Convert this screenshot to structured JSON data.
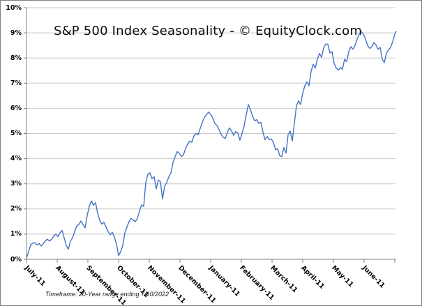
{
  "window": {
    "background": "#ffffff",
    "border_color": "#808080"
  },
  "chart_data": {
    "type": "line",
    "title": "S&P 500 Index Seasonality - © EquityClock.com",
    "note": "Timeframe: 20-Year range ending 7/10/2022",
    "grid": "horizontal",
    "legend": "none",
    "line_color": "#4472C4",
    "axis_color": "#808080",
    "grid_color": "#C8C8C8",
    "x_axis": {
      "tick_labels": [
        "July-11",
        "August-11",
        "September-11",
        "October-11",
        "November-11",
        "December-11",
        "January-11",
        "February-11",
        "March-11",
        "April-11",
        "May-11",
        "June-11"
      ]
    },
    "y_axis": {
      "tick_labels": [
        "0%",
        "1%",
        "2%",
        "3%",
        "4%",
        "5%",
        "6%",
        "7%",
        "8%",
        "9%",
        "10%"
      ],
      "min": 0,
      "max": 10,
      "unit": "%"
    },
    "series": [
      {
        "values": [
          0.05,
          0.3,
          0.58,
          0.64,
          0.66,
          0.57,
          0.63,
          0.53,
          0.62,
          0.73,
          0.8,
          0.72,
          0.8,
          0.92,
          1.0,
          0.9,
          1.05,
          1.15,
          0.85,
          0.55,
          0.4,
          0.72,
          0.85,
          1.1,
          1.32,
          1.38,
          1.52,
          1.38,
          1.25,
          1.74,
          2.11,
          2.32,
          2.15,
          2.25,
          1.83,
          1.55,
          1.4,
          1.47,
          1.28,
          1.1,
          0.97,
          1.08,
          0.88,
          0.6,
          0.15,
          0.3,
          0.55,
          1.05,
          1.28,
          1.5,
          1.63,
          1.55,
          1.5,
          1.62,
          1.92,
          2.16,
          2.1,
          3.05,
          3.38,
          3.44,
          3.2,
          3.28,
          2.8,
          3.15,
          3.08,
          2.4,
          2.9,
          3.05,
          3.28,
          3.42,
          3.85,
          4.08,
          4.28,
          4.22,
          4.08,
          4.15,
          4.4,
          4.58,
          4.7,
          4.65,
          4.9,
          5.0,
          4.95,
          5.2,
          5.45,
          5.64,
          5.75,
          5.85,
          5.76,
          5.62,
          5.4,
          5.32,
          5.15,
          4.97,
          4.85,
          4.8,
          5.05,
          5.22,
          5.1,
          4.93,
          5.08,
          5.02,
          4.73,
          5.0,
          5.3,
          5.75,
          6.15,
          5.95,
          5.7,
          5.5,
          5.55,
          5.4,
          5.45,
          5.05,
          4.75,
          4.88,
          4.75,
          4.78,
          4.65,
          4.35,
          4.4,
          4.12,
          4.08,
          4.45,
          4.22,
          4.95,
          5.1,
          4.7,
          5.4,
          6.1,
          6.3,
          6.15,
          6.6,
          6.9,
          7.05,
          6.9,
          7.47,
          7.75,
          7.6,
          7.95,
          8.18,
          8.03,
          8.4,
          8.55,
          8.55,
          8.2,
          8.25,
          7.78,
          7.6,
          7.52,
          7.62,
          7.55,
          7.95,
          7.85,
          8.25,
          8.45,
          8.35,
          8.5,
          8.75,
          8.95,
          9.05,
          8.95,
          8.75,
          8.5,
          8.38,
          8.45,
          8.62,
          8.52,
          8.35,
          8.42,
          7.95,
          7.82,
          8.2,
          8.32,
          8.42,
          8.65,
          8.95,
          9.05
        ]
      }
    ]
  }
}
